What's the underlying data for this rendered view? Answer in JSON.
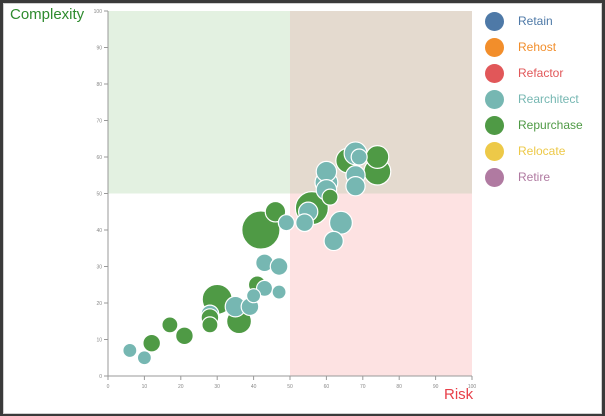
{
  "chart_data": {
    "type": "scatter",
    "ylabel": "Complexity",
    "xlabel": "Risk",
    "xlim": [
      0,
      100
    ],
    "ylim": [
      0,
      100
    ],
    "x_ticks": [
      "0",
      "10",
      "20",
      "30",
      "40",
      "50",
      "60",
      "70",
      "80",
      "90",
      "100"
    ],
    "y_ticks": [
      "0",
      "10",
      "20",
      "30",
      "40",
      "50",
      "60",
      "70",
      "80",
      "90",
      "100"
    ],
    "quadrants": [
      {
        "name": "low-risk-high-complexity",
        "x": [
          0,
          50
        ],
        "y": [
          50,
          100
        ],
        "color": "#e3f1e1"
      },
      {
        "name": "high-risk-high-complexity",
        "x": [
          50,
          100
        ],
        "y": [
          50,
          100
        ],
        "color": "#e4dacf"
      },
      {
        "name": "high-risk-low-complexity",
        "x": [
          50,
          100
        ],
        "y": [
          0,
          50
        ],
        "color": "#fde2e2"
      },
      {
        "name": "low-risk-low-complexity",
        "x": [
          0,
          50
        ],
        "y": [
          0,
          50
        ],
        "color": "#ffffff"
      }
    ],
    "legend_position": "top-right",
    "series": [
      {
        "name": "Retain",
        "color": "#4e79a7",
        "points": []
      },
      {
        "name": "Rehost",
        "color": "#f28e2b",
        "points": []
      },
      {
        "name": "Refactor",
        "color": "#e15759",
        "points": []
      },
      {
        "name": "Rearchitect",
        "color": "#76b7b2",
        "points": [
          {
            "x": 6,
            "y": 7,
            "size": 1
          },
          {
            "x": 10,
            "y": 5,
            "size": 1
          },
          {
            "x": 28,
            "y": 17,
            "size": 2
          },
          {
            "x": 35,
            "y": 19,
            "size": 3
          },
          {
            "x": 39,
            "y": 19,
            "size": 2
          },
          {
            "x": 40,
            "y": 22,
            "size": 1
          },
          {
            "x": 43,
            "y": 24,
            "size": 1.5
          },
          {
            "x": 43,
            "y": 31,
            "size": 2
          },
          {
            "x": 47,
            "y": 30,
            "size": 2
          },
          {
            "x": 47,
            "y": 23,
            "size": 1
          },
          {
            "x": 49,
            "y": 42,
            "size": 1.5
          },
          {
            "x": 54,
            "y": 42,
            "size": 2
          },
          {
            "x": 55,
            "y": 45,
            "size": 2.5
          },
          {
            "x": 60,
            "y": 56,
            "size": 3
          },
          {
            "x": 60,
            "y": 53,
            "size": 4
          },
          {
            "x": 60,
            "y": 51,
            "size": 3
          },
          {
            "x": 62,
            "y": 37,
            "size": 2.5
          },
          {
            "x": 64,
            "y": 42,
            "size": 4
          },
          {
            "x": 68,
            "y": 61,
            "size": 4
          },
          {
            "x": 68,
            "y": 55,
            "size": 2.5
          },
          {
            "x": 68,
            "y": 52,
            "size": 2.5
          },
          {
            "x": 69,
            "y": 60,
            "size": 1.5
          }
        ]
      },
      {
        "name": "Repurchase",
        "color": "#4f9a45",
        "points": [
          {
            "x": 12,
            "y": 9,
            "size": 2
          },
          {
            "x": 17,
            "y": 14,
            "size": 1.5
          },
          {
            "x": 21,
            "y": 11,
            "size": 2
          },
          {
            "x": 28,
            "y": 14,
            "size": 1.5
          },
          {
            "x": 28,
            "y": 16,
            "size": 2
          },
          {
            "x": 30,
            "y": 21,
            "size": 8
          },
          {
            "x": 36,
            "y": 15,
            "size": 5
          },
          {
            "x": 41,
            "y": 25,
            "size": 2
          },
          {
            "x": 42,
            "y": 40,
            "size": 14
          },
          {
            "x": 46,
            "y": 45,
            "size": 3
          },
          {
            "x": 56,
            "y": 46,
            "size": 10
          },
          {
            "x": 61,
            "y": 49,
            "size": 1.5
          },
          {
            "x": 66,
            "y": 59,
            "size": 5
          },
          {
            "x": 74,
            "y": 60,
            "size": 4
          },
          {
            "x": 74,
            "y": 56,
            "size": 6
          }
        ]
      },
      {
        "name": "Relocate",
        "color": "#edc948",
        "points": []
      },
      {
        "name": "Retire",
        "color": "#b07aa1",
        "points": []
      }
    ]
  }
}
